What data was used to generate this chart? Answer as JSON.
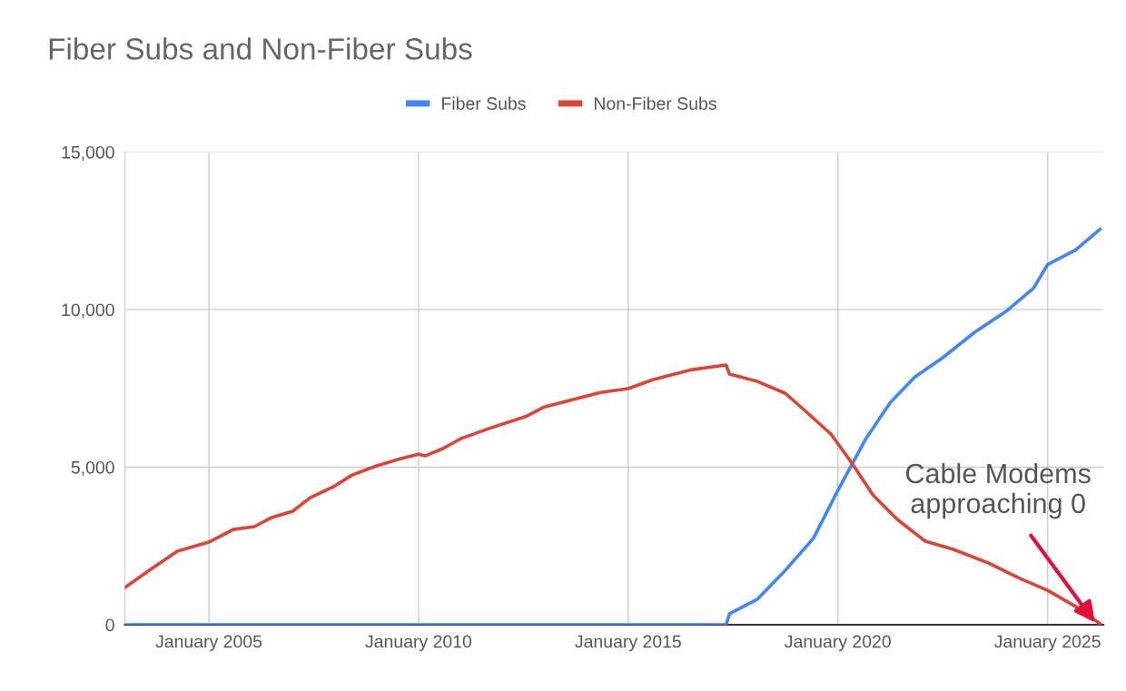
{
  "chart_data": {
    "type": "line",
    "title": "Fiber Subs and Non-Fiber Subs",
    "x": [
      "2003-01",
      "2003-08",
      "2004-04",
      "2005-01",
      "2005-08",
      "2006-02",
      "2006-07",
      "2007-01",
      "2007-06",
      "2008-01",
      "2008-06",
      "2009-01",
      "2009-08",
      "2010-01",
      "2010-03",
      "2010-08",
      "2011-01",
      "2011-09",
      "2012-08",
      "2013-01",
      "2013-08",
      "2014-05",
      "2015-01",
      "2015-08",
      "2016-07",
      "2017-05",
      "2017-06",
      "2018-02",
      "2018-10",
      "2019-03",
      "2019-11",
      "2020-05",
      "2020-11",
      "2021-06",
      "2022-02",
      "2022-10",
      "2023-08",
      "2024-05",
      "2025-01",
      "2025-09",
      "2026-04"
    ],
    "series": [
      {
        "name": "Fiber Subs",
        "color": "#4285f4",
        "x": [
          "2003-01",
          "2017-05",
          "2017-06",
          "2018-02",
          "2018-10",
          "2019-06",
          "2020-01",
          "2020-09",
          "2021-04",
          "2021-11",
          "2022-07",
          "2023-04",
          "2024-01",
          "2024-09",
          "2025-01",
          "2025-09",
          "2026-04"
        ],
        "values": [
          0,
          0,
          350,
          810,
          1730,
          2740,
          4260,
          5900,
          7050,
          7860,
          8470,
          9270,
          9930,
          10680,
          11430,
          11890,
          12550
        ]
      },
      {
        "name": "Non-Fiber Subs",
        "color": "#db4437",
        "values": [
          1180,
          1730,
          2330,
          2620,
          3020,
          3110,
          3400,
          3600,
          4030,
          4400,
          4750,
          5040,
          5270,
          5410,
          5360,
          5590,
          5900,
          6220,
          6620,
          6910,
          7110,
          7370,
          7490,
          7770,
          8090,
          8240,
          7950,
          7720,
          7340,
          6850,
          6050,
          5130,
          4120,
          3340,
          2650,
          2390,
          1960,
          1470,
          1090,
          580,
          30
        ]
      }
    ],
    "xlim": [
      "2003-01",
      "2026-05"
    ],
    "xticks": [
      {
        "value": "2005-01",
        "label": "January 2005"
      },
      {
        "value": "2010-01",
        "label": "January 2010"
      },
      {
        "value": "2015-01",
        "label": "January 2015"
      },
      {
        "value": "2020-01",
        "label": "January 2020"
      },
      {
        "value": "2025-01",
        "label": "January 2025"
      }
    ],
    "ylim": [
      0,
      15000
    ],
    "yticks": [
      0,
      {
        "value": 5000,
        "label": "5,000"
      },
      {
        "value": 10000,
        "label": "10,000"
      },
      {
        "value": 15000,
        "label": "15,000"
      }
    ],
    "grid": true,
    "legend": "top",
    "marker": "none",
    "line_style": "solid",
    "annotations": [
      {
        "text": "Cable Modems\napproaching 0",
        "x": "2026-03",
        "y": 0
      }
    ]
  }
}
